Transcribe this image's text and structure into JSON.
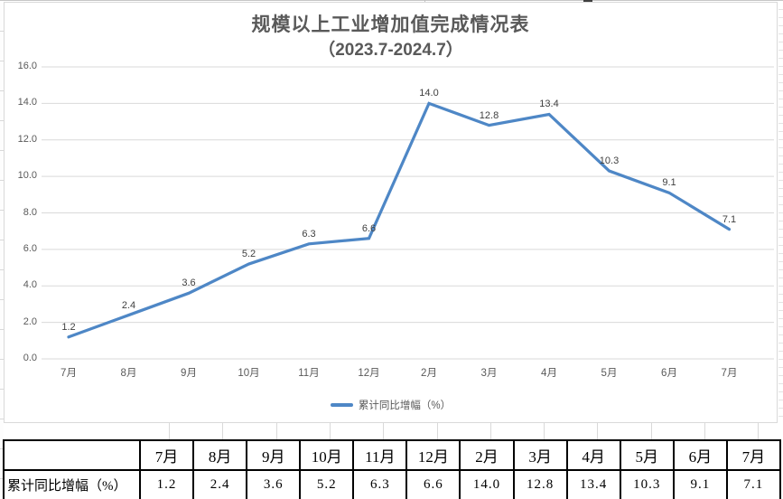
{
  "chart_data": {
    "type": "line",
    "title": "规模以上工业增加值完成情况表",
    "subtitle": "（2023.7-2024.7）",
    "categories": [
      "7月",
      "8月",
      "9月",
      "10月",
      "11月",
      "12月",
      "2月",
      "3月",
      "4月",
      "5月",
      "6月",
      "7月"
    ],
    "series": [
      {
        "name": "累计同比增幅（%）",
        "values": [
          1.2,
          2.4,
          3.6,
          5.2,
          6.3,
          6.6,
          14.0,
          12.8,
          13.4,
          10.3,
          9.1,
          7.1
        ],
        "labels": [
          "1.2",
          "2.4",
          "3.6",
          "5.2",
          "6.3",
          "6.6",
          "14.0",
          "12.8",
          "13.4",
          "10.3",
          "9.1",
          "7.1"
        ],
        "color": "#4e87c6"
      }
    ],
    "ylim": [
      0.0,
      16.0
    ],
    "ytick_step": 2.0,
    "yticks": [
      "0.0",
      "2.0",
      "4.0",
      "6.0",
      "8.0",
      "10.0",
      "12.0",
      "14.0",
      "16.0"
    ],
    "grid": true,
    "gridline_color": "#d9d9d9",
    "axis_text_color": "#595959",
    "data_label_color": "#404040",
    "legend_position": "bottom"
  },
  "table": {
    "corner": "",
    "row_header": "累计同比增幅（%）",
    "columns": [
      "7月",
      "8月",
      "9月",
      "10月",
      "11月",
      "12月",
      "2月",
      "3月",
      "4月",
      "5月",
      "6月",
      "7月"
    ],
    "values": [
      "1.2",
      "2.4",
      "3.6",
      "5.2",
      "6.3",
      "6.6",
      "14.0",
      "12.8",
      "13.4",
      "10.3",
      "9.1",
      "7.1"
    ]
  }
}
